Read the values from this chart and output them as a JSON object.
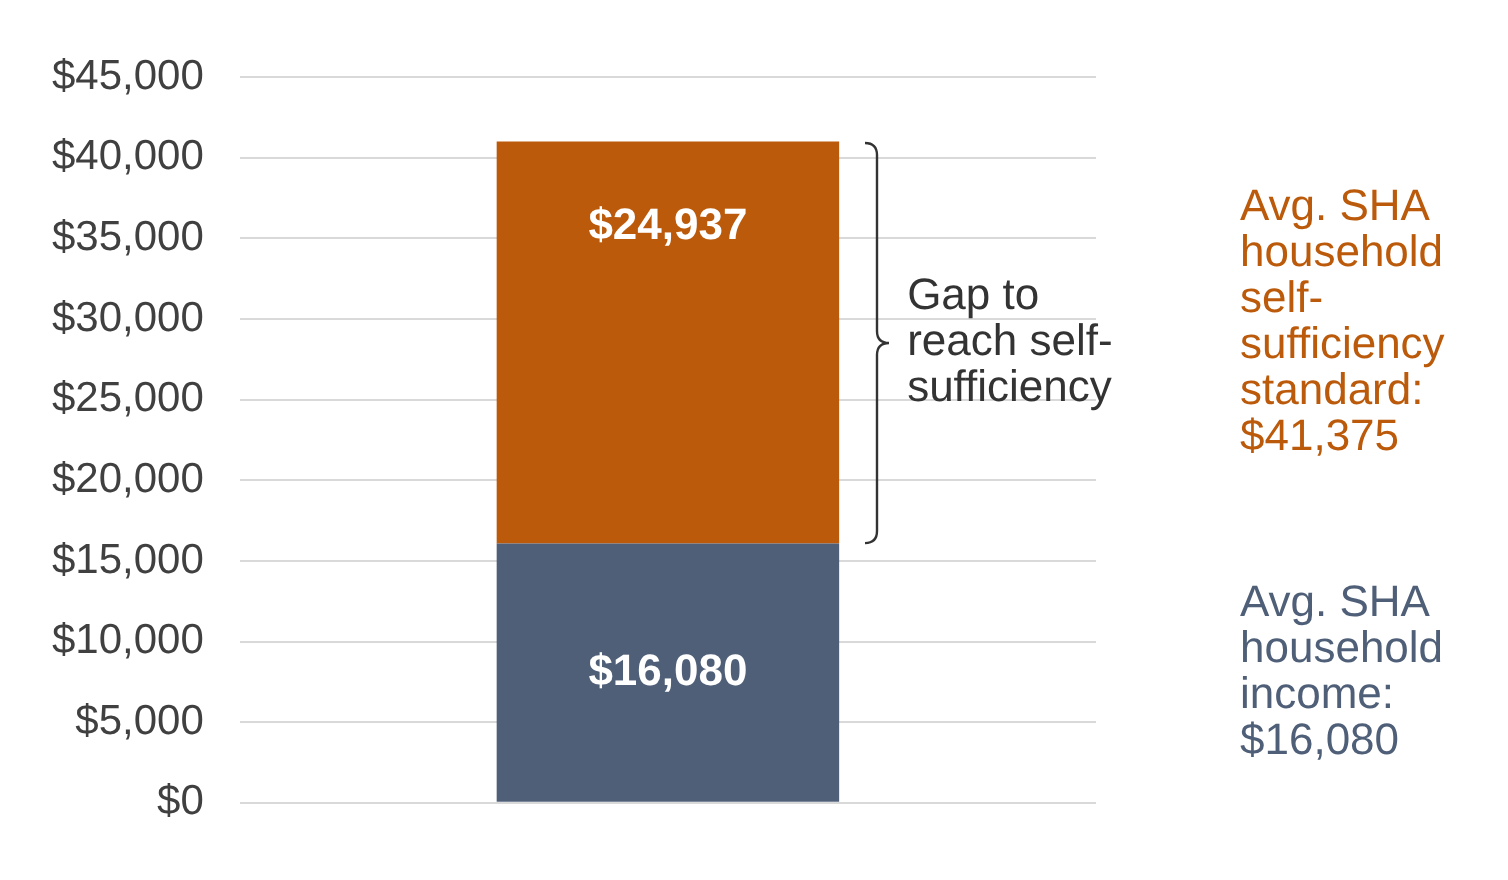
{
  "chart_data": {
    "type": "bar",
    "stacked": true,
    "categories": [
      null
    ],
    "series": [
      {
        "color": "#4f5f78",
        "values": [
          16080
        ],
        "value_labels": [
          "$16,080"
        ]
      },
      {
        "color": "#bb5a0a",
        "values": [
          24937
        ],
        "value_labels": [
          "$24,937"
        ]
      }
    ],
    "ylim": [
      0,
      45000
    ],
    "yticks": [
      {
        "value": 0,
        "label": "$0"
      },
      {
        "value": 5000,
        "label": "$5,000"
      },
      {
        "value": 10000,
        "label": "$10,000"
      },
      {
        "value": 15000,
        "label": "$15,000"
      },
      {
        "value": 20000,
        "label": "$20,000"
      },
      {
        "value": 25000,
        "label": "$25,000"
      },
      {
        "value": 30000,
        "label": "$30,000"
      },
      {
        "value": 35000,
        "label": "$35,000"
      },
      {
        "value": 40000,
        "label": "$40,000"
      },
      {
        "value": 45000,
        "label": "$45,000"
      }
    ],
    "grid": "y",
    "annotations": [
      "Gap to reach self-sufficiency",
      "Avg. SHA household self-sufficiency standard: $41,375",
      "Avg. SHA household income: $16,080"
    ]
  }
}
